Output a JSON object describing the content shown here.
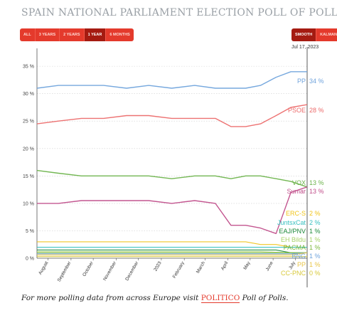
{
  "header": {
    "title": "SPAIN NATIONAL PARLIAMENT ELECTION POLL OF POLLS"
  },
  "range_buttons": [
    {
      "label": "ALL",
      "active": false
    },
    {
      "label": "3 YEARS",
      "active": false
    },
    {
      "label": "2 YEARS",
      "active": false
    },
    {
      "label": "1 YEAR",
      "active": true
    },
    {
      "label": "6 MONTHS",
      "active": false
    }
  ],
  "mode_buttons": [
    {
      "label": "SMOOTH",
      "active": true
    },
    {
      "label": "KALMAN",
      "active": false
    }
  ],
  "current_date": "Jul 17, 2023",
  "footer": {
    "prefix": "For more polling data from across Europe visit ",
    "link": "POLITICO",
    "suffix": " Poll of Polls."
  },
  "chart_data": {
    "type": "line",
    "x_dates": [
      "2022-07-17",
      "2022-08-15",
      "2022-09-15",
      "2022-10-15",
      "2022-11-15",
      "2022-12-15",
      "2023-01-15",
      "2023-02-15",
      "2023-03-15",
      "2023-04-05",
      "2023-04-25",
      "2023-05-15",
      "2023-06-05",
      "2023-06-25",
      "2023-07-17"
    ],
    "x_ticks": [
      "August",
      "September",
      "October",
      "November",
      "December",
      "2023",
      "February",
      "March",
      "April",
      "May",
      "June",
      "July"
    ],
    "y_ticks": [
      "0 %",
      "5 %",
      "10 %",
      "15 %",
      "20 %",
      "25 %",
      "30 %",
      "35 %"
    ],
    "ylim": [
      0,
      38
    ],
    "grid": true,
    "series": [
      {
        "name": "PP",
        "label": "34 %",
        "color": "#6fa3dc",
        "values": [
          31,
          31.5,
          31.5,
          31.5,
          31,
          31.5,
          31,
          31.5,
          31,
          31,
          31,
          31.5,
          33,
          34,
          34
        ]
      },
      {
        "name": "PSOE",
        "label": "28 %",
        "color": "#ec6a6a",
        "values": [
          24.5,
          25,
          25.5,
          25.5,
          26,
          26,
          25.5,
          25.5,
          25.5,
          24,
          24,
          24.5,
          26,
          27.5,
          28
        ]
      },
      {
        "name": "VOX",
        "label": "13 %",
        "color": "#6bb34a",
        "values": [
          16,
          15.5,
          15,
          15,
          15,
          15,
          14.5,
          15,
          15,
          14.5,
          15,
          15,
          14.5,
          14,
          13
        ]
      },
      {
        "name": "Sumar",
        "label": "13 %",
        "color": "#c04d8a",
        "values": [
          10,
          10,
          10.5,
          10.5,
          10.5,
          10.5,
          10,
          10.5,
          10,
          6,
          6,
          5.5,
          4.5,
          12,
          13
        ]
      },
      {
        "name": "ERC-S",
        "label": "2 %",
        "color": "#f0c419",
        "values": [
          3,
          3,
          3,
          3,
          3,
          3,
          3,
          3,
          3,
          3,
          3,
          2.5,
          2.5,
          2,
          2
        ]
      },
      {
        "name": "JuntsxCat",
        "label": "2 %",
        "color": "#37c0c0",
        "values": [
          2,
          2,
          2,
          2,
          2,
          2,
          2,
          2,
          2,
          2,
          2,
          2,
          2,
          2,
          2
        ]
      },
      {
        "name": "EAJ/PNV",
        "label": "1 %",
        "color": "#1e8a3c",
        "values": [
          1.5,
          1.5,
          1.5,
          1.5,
          1.5,
          1.5,
          1.5,
          1.5,
          1.5,
          1.5,
          1.5,
          1.5,
          1.5,
          1,
          1
        ]
      },
      {
        "name": "EH Bildu",
        "label": "1 %",
        "color": "#a8d26a",
        "values": [
          1.2,
          1.2,
          1.2,
          1.2,
          1.2,
          1.2,
          1.2,
          1.2,
          1.2,
          1.2,
          1.2,
          1.2,
          1.1,
          1,
          1
        ]
      },
      {
        "name": "PACMA",
        "label": "1 %",
        "color": "#7db83e",
        "values": [
          1,
          1,
          1,
          1,
          1,
          1,
          1,
          1,
          1,
          1,
          1,
          1,
          1,
          1,
          1
        ]
      },
      {
        "name": "BNG",
        "label": "1 %",
        "color": "#6fa3dc",
        "values": [
          0.8,
          0.8,
          0.8,
          0.8,
          0.8,
          0.8,
          0.8,
          0.8,
          0.8,
          0.8,
          0.8,
          0.8,
          0.8,
          0.8,
          1
        ]
      },
      {
        "name": "PP",
        "label": "1 %",
        "color": "#e8c547",
        "values": [
          0.6,
          0.6,
          0.6,
          0.6,
          0.6,
          0.6,
          0.6,
          0.6,
          0.6,
          0.6,
          0.6,
          0.6,
          0.6,
          0.6,
          1
        ]
      },
      {
        "name": "CC-PNC",
        "label": "0 %",
        "color": "#d8c93a",
        "values": [
          0.3,
          0.3,
          0.3,
          0.3,
          0.3,
          0.3,
          0.3,
          0.3,
          0.3,
          0.3,
          0.3,
          0.3,
          0.3,
          0.3,
          0.3
        ]
      }
    ]
  }
}
